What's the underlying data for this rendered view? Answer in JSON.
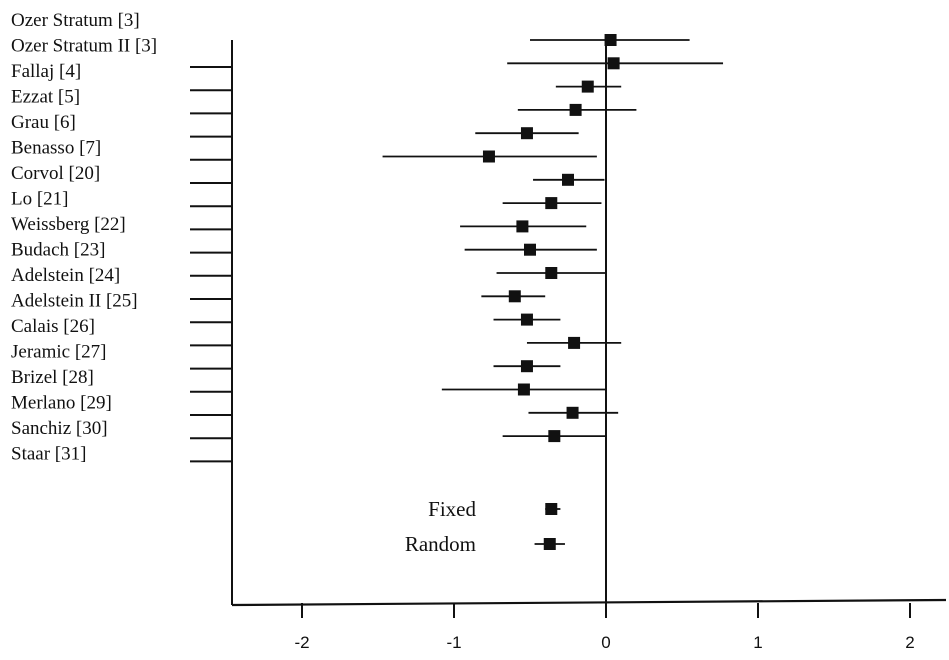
{
  "chart_data": {
    "type": "forest",
    "xlim": [
      -2.5,
      2.2
    ],
    "xticks": [
      -2,
      -1,
      0,
      1,
      2
    ],
    "xtick_labels": [
      "-2",
      "-1",
      "0",
      "1",
      "2"
    ],
    "grid": false,
    "reference_line": 0,
    "studies": [
      {
        "label": "Ozer Stratum [3]",
        "effect": 0.03,
        "ci": [
          -0.5,
          0.55
        ]
      },
      {
        "label": "Ozer Stratum II [3]",
        "effect": 0.05,
        "ci": [
          -0.65,
          0.77
        ]
      },
      {
        "label": "Fallaj [4]",
        "effect": -0.12,
        "ci": [
          -0.33,
          0.1
        ]
      },
      {
        "label": "Ezzat [5]",
        "effect": -0.2,
        "ci": [
          -0.58,
          0.2
        ]
      },
      {
        "label": "Grau [6]",
        "effect": -0.52,
        "ci": [
          -0.86,
          -0.18
        ]
      },
      {
        "label": "Benasso [7]",
        "effect": -0.77,
        "ci": [
          -1.47,
          -0.06
        ]
      },
      {
        "label": "Corvol [20]",
        "effect": -0.25,
        "ci": [
          -0.48,
          -0.01
        ]
      },
      {
        "label": "Lo [21]",
        "effect": -0.36,
        "ci": [
          -0.68,
          -0.03
        ]
      },
      {
        "label": "Weissberg [22]",
        "effect": -0.55,
        "ci": [
          -0.96,
          -0.13
        ]
      },
      {
        "label": "Budach [23]",
        "effect": -0.5,
        "ci": [
          -0.93,
          -0.06
        ]
      },
      {
        "label": "Adelstein [24]",
        "effect": -0.36,
        "ci": [
          -0.72,
          0.0
        ]
      },
      {
        "label": "Adelstein II [25]",
        "effect": -0.6,
        "ci": [
          -0.82,
          -0.4
        ]
      },
      {
        "label": "Calais [26]",
        "effect": -0.52,
        "ci": [
          -0.74,
          -0.3
        ]
      },
      {
        "label": "Jeramic [27]",
        "effect": -0.21,
        "ci": [
          -0.52,
          0.1
        ]
      },
      {
        "label": "Brizel [28]",
        "effect": -0.52,
        "ci": [
          -0.74,
          -0.3
        ]
      },
      {
        "label": "Merlano [29]",
        "effect": -0.54,
        "ci": [
          -1.08,
          0.0
        ]
      },
      {
        "label": "Sanchiz [30]",
        "effect": -0.22,
        "ci": [
          -0.51,
          0.08
        ]
      },
      {
        "label": "Staar [31]",
        "effect": -0.34,
        "ci": [
          -0.68,
          0.0
        ]
      }
    ],
    "summary": [
      {
        "label": "Fixed",
        "effect": -0.36,
        "ci": [
          -0.4,
          -0.3
        ]
      },
      {
        "label": "Random",
        "effect": -0.37,
        "ci": [
          -0.47,
          -0.27
        ]
      }
    ]
  }
}
